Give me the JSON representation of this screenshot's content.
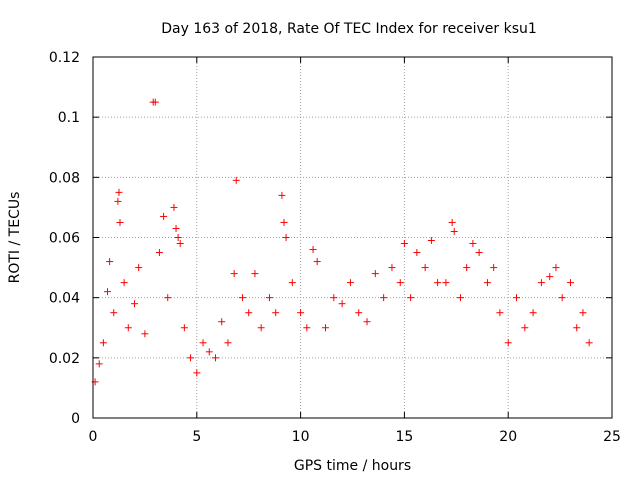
{
  "chart_data": {
    "type": "scatter",
    "title": "Day 163 of 2018, Rate Of TEC Index for receiver ksu1",
    "xlabel": "GPS time / hours",
    "ylabel": "ROTI / TECUs",
    "xlim": [
      0,
      25
    ],
    "ylim": [
      0,
      0.12
    ],
    "grid": true,
    "marker": "+",
    "color": "#ff0000",
    "x_ticks": [
      0,
      5,
      10,
      15,
      20,
      25
    ],
    "x_tick_labels": [
      "0",
      "5",
      "10",
      "15",
      "20",
      "25"
    ],
    "y_ticks": [
      0,
      0.02,
      0.04,
      0.06,
      0.08,
      0.1,
      0.12
    ],
    "y_tick_labels": [
      "0",
      "0.02",
      "0.04",
      "0.06",
      "0.08",
      "0.1",
      "0.12"
    ],
    "series": [
      {
        "name": "ROTI",
        "points": [
          [
            0.1,
            0.012
          ],
          [
            0.3,
            0.018
          ],
          [
            0.5,
            0.025
          ],
          [
            0.7,
            0.042
          ],
          [
            0.8,
            0.052
          ],
          [
            1.0,
            0.035
          ],
          [
            1.2,
            0.072
          ],
          [
            1.25,
            0.075
          ],
          [
            1.3,
            0.065
          ],
          [
            1.5,
            0.045
          ],
          [
            1.7,
            0.03
          ],
          [
            2.0,
            0.038
          ],
          [
            2.2,
            0.05
          ],
          [
            2.5,
            0.028
          ],
          [
            2.9,
            0.105
          ],
          [
            3.0,
            0.105
          ],
          [
            3.2,
            0.055
          ],
          [
            3.4,
            0.067
          ],
          [
            3.6,
            0.04
          ],
          [
            3.9,
            0.07
          ],
          [
            4.0,
            0.063
          ],
          [
            4.1,
            0.06
          ],
          [
            4.2,
            0.058
          ],
          [
            4.4,
            0.03
          ],
          [
            4.7,
            0.02
          ],
          [
            5.0,
            0.015
          ],
          [
            5.3,
            0.025
          ],
          [
            5.6,
            0.022
          ],
          [
            5.9,
            0.02
          ],
          [
            6.2,
            0.032
          ],
          [
            6.5,
            0.025
          ],
          [
            6.8,
            0.048
          ],
          [
            6.9,
            0.079
          ],
          [
            7.2,
            0.04
          ],
          [
            7.5,
            0.035
          ],
          [
            7.8,
            0.048
          ],
          [
            8.1,
            0.03
          ],
          [
            8.5,
            0.04
          ],
          [
            8.8,
            0.035
          ],
          [
            9.1,
            0.074
          ],
          [
            9.2,
            0.065
          ],
          [
            9.3,
            0.06
          ],
          [
            9.6,
            0.045
          ],
          [
            10.0,
            0.035
          ],
          [
            10.3,
            0.03
          ],
          [
            10.6,
            0.056
          ],
          [
            10.8,
            0.052
          ],
          [
            11.2,
            0.03
          ],
          [
            11.6,
            0.04
          ],
          [
            12.0,
            0.038
          ],
          [
            12.4,
            0.045
          ],
          [
            12.8,
            0.035
          ],
          [
            13.2,
            0.032
          ],
          [
            13.6,
            0.048
          ],
          [
            14.0,
            0.04
          ],
          [
            14.4,
            0.05
          ],
          [
            14.8,
            0.045
          ],
          [
            15.0,
            0.058
          ],
          [
            15.3,
            0.04
          ],
          [
            15.6,
            0.055
          ],
          [
            16.0,
            0.05
          ],
          [
            16.3,
            0.059
          ],
          [
            16.6,
            0.045
          ],
          [
            17.0,
            0.045
          ],
          [
            17.3,
            0.065
          ],
          [
            17.4,
            0.062
          ],
          [
            17.7,
            0.04
          ],
          [
            18.0,
            0.05
          ],
          [
            18.3,
            0.058
          ],
          [
            18.6,
            0.055
          ],
          [
            19.0,
            0.045
          ],
          [
            19.3,
            0.05
          ],
          [
            19.6,
            0.035
          ],
          [
            20.0,
            0.025
          ],
          [
            20.4,
            0.04
          ],
          [
            20.8,
            0.03
          ],
          [
            21.2,
            0.035
          ],
          [
            21.6,
            0.045
          ],
          [
            22.0,
            0.047
          ],
          [
            22.3,
            0.05
          ],
          [
            22.6,
            0.04
          ],
          [
            23.0,
            0.045
          ],
          [
            23.3,
            0.03
          ],
          [
            23.6,
            0.035
          ],
          [
            23.9,
            0.025
          ]
        ]
      }
    ]
  }
}
